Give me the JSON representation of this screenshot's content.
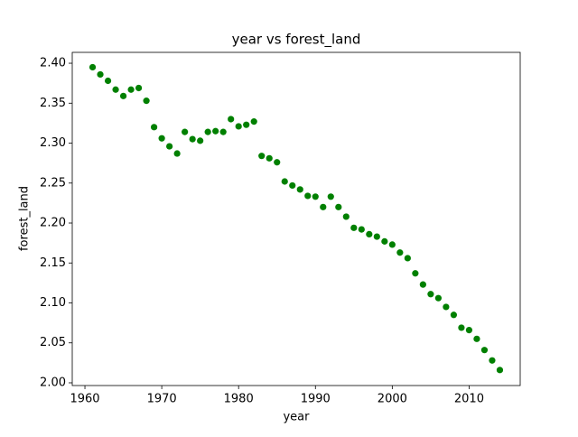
{
  "chart_data": {
    "type": "scatter",
    "title": "year vs forest_land",
    "x_label": "year",
    "y_label": "forest_land",
    "color": "#008000",
    "x": [
      1961,
      1962,
      1963,
      1964,
      1965,
      1966,
      1967,
      1968,
      1969,
      1970,
      1971,
      1972,
      1973,
      1974,
      1975,
      1976,
      1977,
      1978,
      1979,
      1980,
      1981,
      1982,
      1983,
      1984,
      1985,
      1986,
      1987,
      1988,
      1989,
      1990,
      1991,
      1992,
      1993,
      1994,
      1995,
      1996,
      1997,
      1998,
      1999,
      2000,
      2001,
      2002,
      2003,
      2004,
      2005,
      2006,
      2007,
      2008,
      2009,
      2010,
      2011,
      2012,
      2013,
      2014
    ],
    "values": [
      2.395,
      2.386,
      2.378,
      2.367,
      2.359,
      2.367,
      2.369,
      2.353,
      2.32,
      2.306,
      2.296,
      2.287,
      2.314,
      2.305,
      2.303,
      2.314,
      2.315,
      2.314,
      2.33,
      2.321,
      2.323,
      2.327,
      2.284,
      2.281,
      2.276,
      2.252,
      2.247,
      2.242,
      2.234,
      2.233,
      2.22,
      2.233,
      2.22,
      2.208,
      2.194,
      2.192,
      2.186,
      2.183,
      2.177,
      2.173,
      2.163,
      2.156,
      2.137,
      2.123,
      2.111,
      2.106,
      2.095,
      2.085,
      2.069,
      2.066,
      2.055,
      2.041,
      2.028,
      2.016
    ],
    "xlim": [
      1958.35,
      2016.65
    ],
    "ylim": [
      1.9966,
      2.4136
    ],
    "xticks": [
      1960,
      1970,
      1980,
      1990,
      2000,
      2010
    ],
    "yticks": [
      {
        "value": 2,
        "label": "2.00"
      },
      2.05,
      {
        "value": 2.1,
        "label": "2.10"
      },
      2.15,
      {
        "value": 2.2,
        "label": "2.20"
      },
      2.25,
      {
        "value": 2.3,
        "label": "2.30"
      },
      2.35,
      {
        "value": 2.4,
        "label": "2.40"
      }
    ],
    "grid": false
  }
}
